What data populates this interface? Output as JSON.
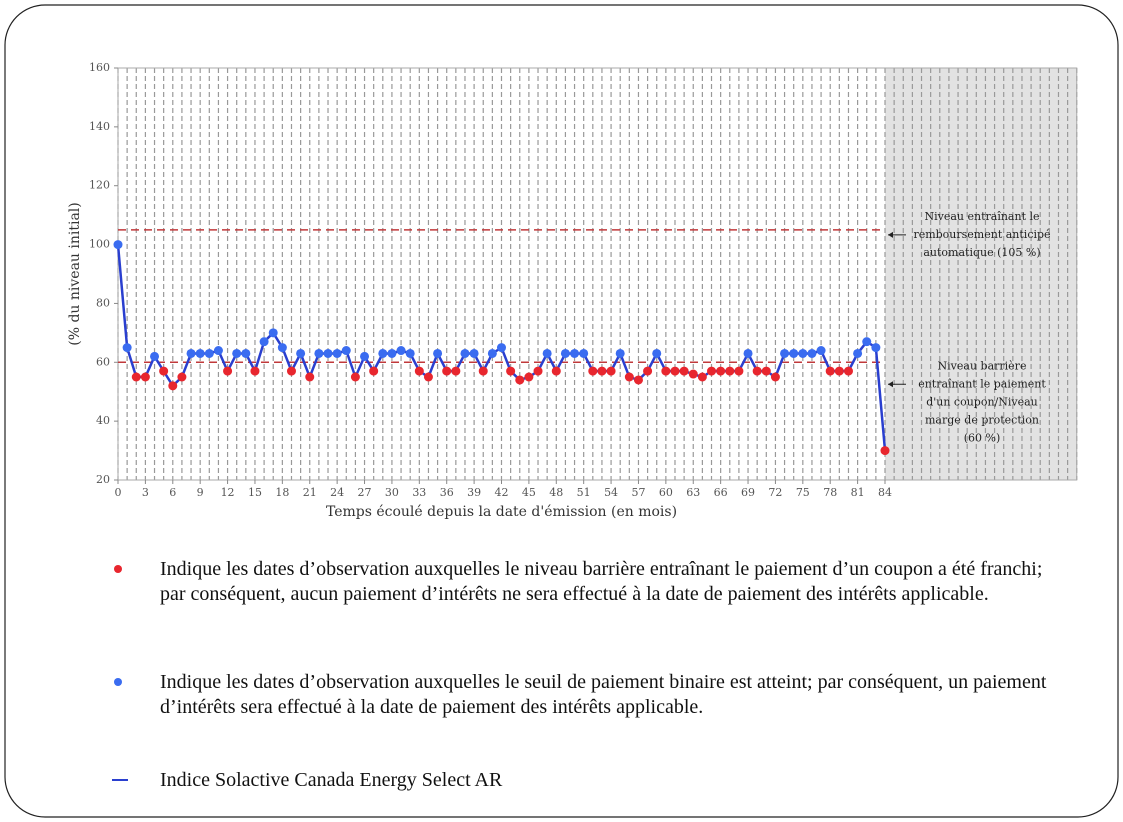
{
  "chart_data": {
    "type": "line",
    "x_label": "Temps écoulé depuis la date d'émission (en mois)",
    "y_label": "(% du niveau initial)",
    "x": [
      0,
      1,
      2,
      3,
      4,
      5,
      6,
      7,
      8,
      9,
      10,
      11,
      12,
      13,
      14,
      15,
      16,
      17,
      18,
      19,
      20,
      21,
      22,
      23,
      24,
      25,
      26,
      27,
      28,
      29,
      30,
      31,
      32,
      33,
      34,
      35,
      36,
      37,
      38,
      39,
      40,
      41,
      42,
      43,
      44,
      45,
      46,
      47,
      48,
      49,
      50,
      51,
      52,
      53,
      54,
      55,
      56,
      57,
      58,
      59,
      60,
      61,
      62,
      63,
      64,
      65,
      66,
      67,
      68,
      69,
      70,
      71,
      72,
      73,
      74,
      75,
      76,
      77,
      78,
      79,
      80,
      81,
      82,
      83,
      84
    ],
    "series": [
      {
        "name": "Indice Solactive Canada Energy Select AR",
        "color": "#2a3fcf",
        "values": [
          100,
          65,
          55,
          55,
          62,
          57,
          52,
          55,
          63,
          63,
          63,
          64,
          57,
          63,
          63,
          57,
          67,
          70,
          65,
          57,
          63,
          55,
          63,
          63,
          63,
          64,
          55,
          62,
          57,
          63,
          63,
          64,
          63,
          57,
          55,
          63,
          57,
          57,
          63,
          63,
          57,
          63,
          65,
          57,
          54,
          55,
          57,
          63,
          57,
          63,
          63,
          63,
          57,
          57,
          57,
          63,
          55,
          54,
          57,
          63,
          57,
          57,
          57,
          56,
          55,
          57,
          57,
          57,
          57,
          63,
          57,
          57,
          55,
          63,
          63,
          63,
          63,
          64,
          57,
          57,
          57,
          63,
          67,
          65,
          30
        ]
      }
    ],
    "xlim": [
      0,
      105
    ],
    "xticks": [
      0,
      3,
      6,
      9,
      12,
      15,
      18,
      21,
      24,
      27,
      30,
      33,
      36,
      39,
      42,
      45,
      48,
      51,
      54,
      57,
      60,
      63,
      66,
      69,
      72,
      75,
      78,
      81,
      84
    ],
    "ylim": [
      20,
      160
    ],
    "yticks": [
      20,
      40,
      60,
      80,
      100,
      120,
      140,
      160
    ],
    "shade_from": 84,
    "grid": true,
    "reference_lines": [
      {
        "value": 105,
        "color": "#c0393b",
        "label_lines": [
          "Niveau entraînant le",
          "remboursement anticipé",
          "automatique (105 %)"
        ]
      },
      {
        "value": 60,
        "color": "#c0393b",
        "label_lines": [
          "Niveau barrière",
          "entraînant le paiement",
          "d'un coupon/Niveau",
          "marge de protection",
          "(60 %)"
        ]
      }
    ],
    "notes": [
      {
        "color": "#e8262e",
        "text": "Indique les dates d’observation auxquelles le niveau barrière entraînant le paiement d’un coupon a été franchi; par conséquent, aucun paiement d’intérêts ne sera effectué à la date de paiement des intérêts applicable."
      },
      {
        "color": "#3a6cf0",
        "text": "Indique les dates d’observation auxquelles le seuil de paiement binaire est atteint; par conséquent, un paiement d’intérêts sera effectué à la date de paiement des intérêts applicable."
      }
    ]
  }
}
